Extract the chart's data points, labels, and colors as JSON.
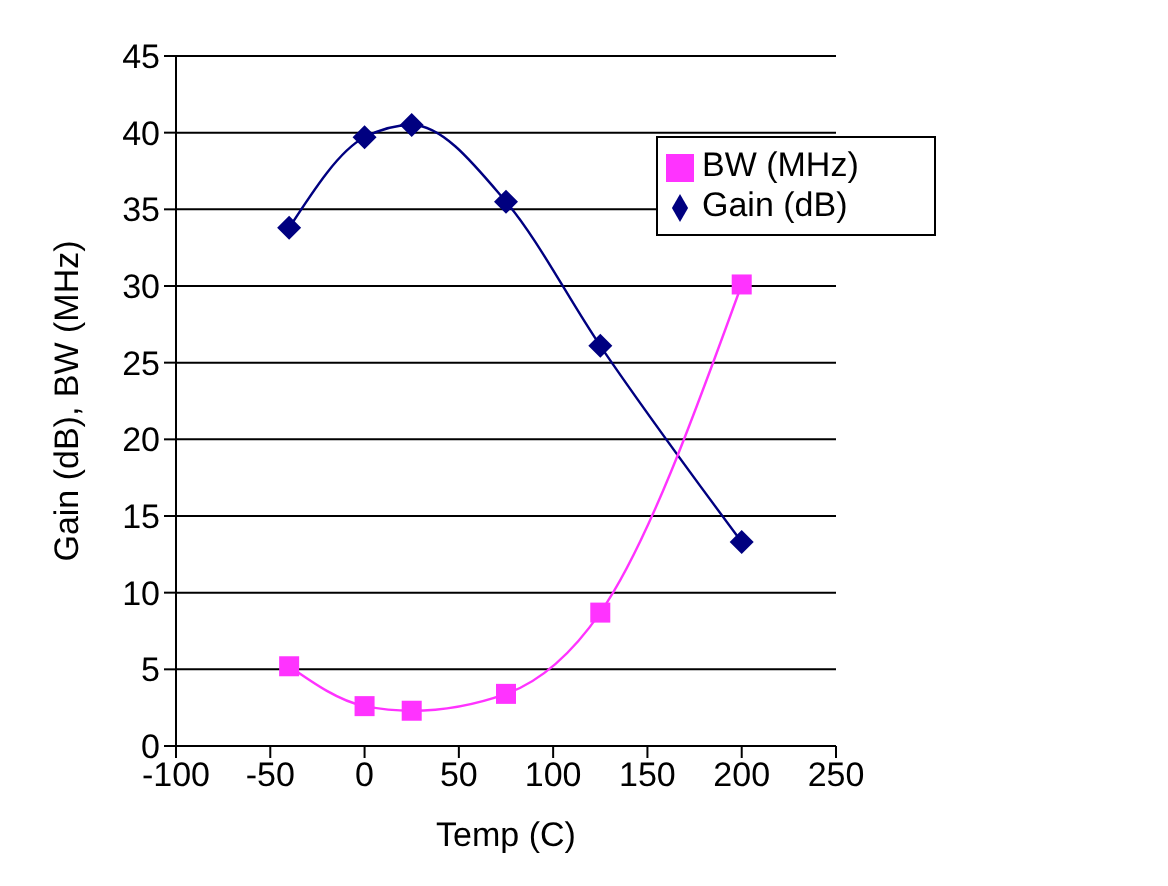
{
  "chart_data": {
    "type": "line",
    "xlabel": "Temp (C)",
    "ylabel": "Gain (dB), BW (MHz)",
    "x": [
      -40,
      0,
      25,
      75,
      125,
      200
    ],
    "series": [
      {
        "name": "Gain (dB)",
        "color": "#000080",
        "marker": "diamond",
        "values": [
          33.8,
          39.7,
          40.5,
          35.5,
          26.1,
          13.3
        ]
      },
      {
        "name": "BW (MHz)",
        "color": "#ff33ff",
        "marker": "square",
        "values": [
          5.2,
          2.6,
          2.3,
          3.4,
          8.7,
          30.1
        ]
      }
    ],
    "xlim": [
      -100,
      250
    ],
    "xticks": [
      -100,
      -50,
      0,
      50,
      100,
      150,
      200,
      250
    ],
    "ylim": [
      0,
      45
    ],
    "yticks": [
      0,
      5,
      10,
      15,
      20,
      25,
      30,
      35,
      40,
      45
    ],
    "grid": "y",
    "legend": "top right"
  }
}
